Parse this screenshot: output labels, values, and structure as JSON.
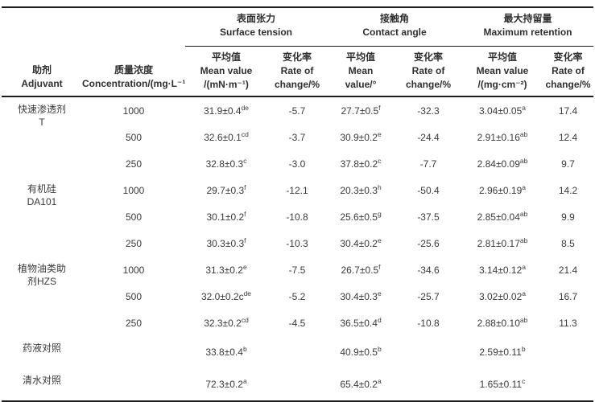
{
  "table": {
    "header": {
      "adjuvant": {
        "zh": "助剂",
        "en": "Adjuvant"
      },
      "concentration": {
        "zh": "质量浓度",
        "en": "Concentration/(mg·L⁻¹)"
      },
      "groups": [
        {
          "zh": "表面张力",
          "en": "Surface tension",
          "mean": {
            "l1": "平均值",
            "l2": "Mean value",
            "l3": "/(mN·m⁻¹)"
          },
          "rate": {
            "l1": "变化率",
            "l2": "Rate of",
            "l3": "change/%"
          }
        },
        {
          "zh": "接触角",
          "en": "Contact angle",
          "mean": {
            "l1": "平均值",
            "l2": "Mean",
            "l3": "value/°"
          },
          "rate": {
            "l1": "变化率",
            "l2": "Rate of",
            "l3": "change/%"
          }
        },
        {
          "zh": "最大持留量",
          "en": "Maximum retention",
          "mean": {
            "l1": "平均值",
            "l2": "Mean value",
            "l3": "/(mg·cm⁻²)"
          },
          "rate": {
            "l1": "变化率",
            "l2": "Rate of",
            "l3": "change/%"
          }
        }
      ]
    },
    "body": [
      {
        "adjuvant": [
          "快速渗透剂",
          "T"
        ],
        "rows": [
          {
            "concentration": "1000",
            "surface_tension": {
              "mean": "31.9±0.4",
              "sup": "de",
              "rate": "-5.7"
            },
            "contact_angle": {
              "mean": "27.7±0.5",
              "sup": "f",
              "rate": "-32.3"
            },
            "max_retention": {
              "mean": "3.04±0.05",
              "sup": "a",
              "rate": "17.4"
            }
          },
          {
            "concentration": "500",
            "surface_tension": {
              "mean": "32.6±0.1",
              "sup": "cd",
              "rate": "-3.7"
            },
            "contact_angle": {
              "mean": "30.9±0.2",
              "sup": "e",
              "rate": "-24.4"
            },
            "max_retention": {
              "mean": "2.91±0.16",
              "sup": "ab",
              "rate": "12.4"
            }
          },
          {
            "concentration": "250",
            "surface_tension": {
              "mean": "32.8±0.3",
              "sup": "c",
              "rate": "-3.0"
            },
            "contact_angle": {
              "mean": "37.8±0.2",
              "sup": "c",
              "rate": "-7.7"
            },
            "max_retention": {
              "mean": "2.84±0.09",
              "sup": "ab",
              "rate": "9.7"
            }
          }
        ]
      },
      {
        "adjuvant": [
          "有机硅",
          "DA101"
        ],
        "rows": [
          {
            "concentration": "1000",
            "surface_tension": {
              "mean": "29.7±0.3",
              "sup": "f",
              "rate": "-12.1"
            },
            "contact_angle": {
              "mean": "20.3±0.3",
              "sup": "h",
              "rate": "-50.4"
            },
            "max_retention": {
              "mean": "2.96±0.19",
              "sup": "a",
              "rate": "14.2"
            }
          },
          {
            "concentration": "500",
            "surface_tension": {
              "mean": "30.1±0.2",
              "sup": "f",
              "rate": "-10.8"
            },
            "contact_angle": {
              "mean": "25.6±0.5",
              "sup": "g",
              "rate": "-37.5"
            },
            "max_retention": {
              "mean": "2.85±0.04",
              "sup": "ab",
              "rate": "9.9"
            }
          },
          {
            "concentration": "250",
            "surface_tension": {
              "mean": "30.3±0.3",
              "sup": "f",
              "rate": "-10.3"
            },
            "contact_angle": {
              "mean": "30.4±0.2",
              "sup": "e",
              "rate": "-25.6"
            },
            "max_retention": {
              "mean": "2.81±0.17",
              "sup": "ab",
              "rate": "8.5"
            }
          }
        ]
      },
      {
        "adjuvant": [
          "植物油类助",
          "剂HZS"
        ],
        "rows": [
          {
            "concentration": "1000",
            "surface_tension": {
              "mean": "31.3±0.2",
              "sup": "e",
              "rate": "-7.5"
            },
            "contact_angle": {
              "mean": "26.7±0.5",
              "sup": "f",
              "rate": "-34.6"
            },
            "max_retention": {
              "mean": "3.14±0.12",
              "sup": "a",
              "rate": "21.4"
            }
          },
          {
            "concentration": "500",
            "surface_tension": {
              "mean": "32.0±0.2c",
              "sup": "de",
              "rate": "-5.2"
            },
            "contact_angle": {
              "mean": "30.4±0.3",
              "sup": "e",
              "rate": "-25.7"
            },
            "max_retention": {
              "mean": "3.02±0.02",
              "sup": "a",
              "rate": "16.7"
            }
          },
          {
            "concentration": "250",
            "surface_tension": {
              "mean": "32.3±0.2",
              "sup": "cd",
              "rate": "-4.5"
            },
            "contact_angle": {
              "mean": "36.5±0.4",
              "sup": "d",
              "rate": "-10.8"
            },
            "max_retention": {
              "mean": "2.88±0.10",
              "sup": "ab",
              "rate": "11.3"
            }
          }
        ]
      },
      {
        "adjuvant": [
          "药液对照"
        ],
        "rows": [
          {
            "concentration": "",
            "surface_tension": {
              "mean": "33.8±0.4",
              "sup": "b",
              "rate": ""
            },
            "contact_angle": {
              "mean": "40.9±0.5",
              "sup": "b",
              "rate": ""
            },
            "max_retention": {
              "mean": "2.59±0.11",
              "sup": "b",
              "rate": ""
            }
          }
        ]
      },
      {
        "adjuvant": [
          "清水对照"
        ],
        "rows": [
          {
            "concentration": "",
            "surface_tension": {
              "mean": "72.3±0.2",
              "sup": "a",
              "rate": ""
            },
            "contact_angle": {
              "mean": "65.4±0.2",
              "sup": "a",
              "rate": ""
            },
            "max_retention": {
              "mean": "1.65±0.11",
              "sup": "c",
              "rate": ""
            }
          }
        ]
      }
    ]
  }
}
